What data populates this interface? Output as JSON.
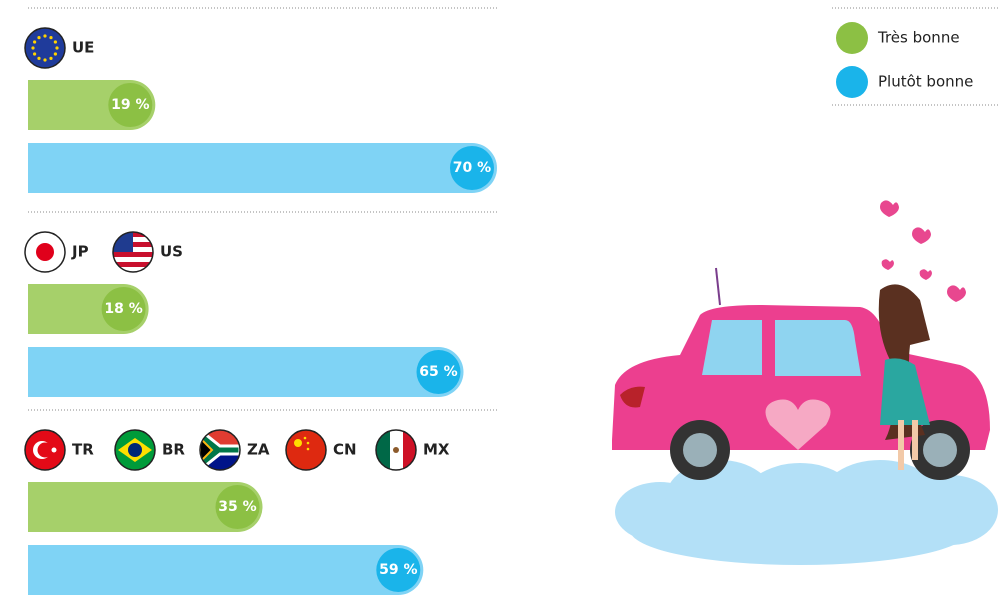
{
  "chart_data": {
    "type": "bar",
    "categories": [
      [
        "UE"
      ],
      [
        "JP",
        "US"
      ],
      [
        "TR",
        "BR",
        "ZA",
        "CN",
        "MX"
      ]
    ],
    "series": [
      {
        "name": "Très bonne",
        "color": "#a6d06a",
        "values": [
          19,
          18,
          35
        ],
        "value_labels": [
          "19 %",
          "18 %",
          "35 %"
        ]
      },
      {
        "name": "Plutôt bonne",
        "color": "#7fd3f5",
        "values": [
          70,
          65,
          59
        ],
        "value_labels": [
          "70 %",
          "65 %",
          "59 %"
        ]
      }
    ]
  }
}
